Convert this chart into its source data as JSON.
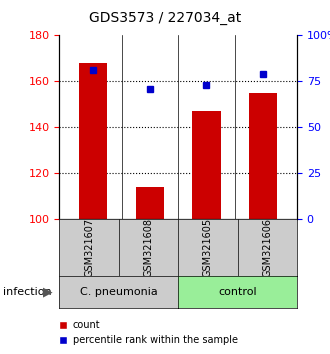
{
  "title": "GDS3573 / 227034_at",
  "samples": [
    "GSM321607",
    "GSM321608",
    "GSM321605",
    "GSM321606"
  ],
  "counts": [
    168,
    114,
    147,
    155
  ],
  "percentiles": [
    81,
    71,
    73,
    79
  ],
  "ylim_left": [
    100,
    180
  ],
  "ylim_right": [
    0,
    100
  ],
  "yticks_left": [
    100,
    120,
    140,
    160,
    180
  ],
  "yticks_right": [
    0,
    25,
    50,
    75,
    100
  ],
  "yticklabels_right": [
    "0",
    "25",
    "50",
    "75",
    "100%"
  ],
  "bar_color": "#cc0000",
  "dot_color": "#0000cc",
  "bar_width": 0.5,
  "groups": [
    {
      "label": "C. pneumonia",
      "samples": [
        "GSM321607",
        "GSM321608"
      ],
      "color": "#cccccc"
    },
    {
      "label": "control",
      "samples": [
        "GSM321605",
        "GSM321606"
      ],
      "color": "#99ee99"
    }
  ],
  "group_label": "infection",
  "legend_count_label": "count",
  "legend_pct_label": "percentile rank within the sample",
  "dotted_line_color": "#000000",
  "background_color": "#ffffff"
}
